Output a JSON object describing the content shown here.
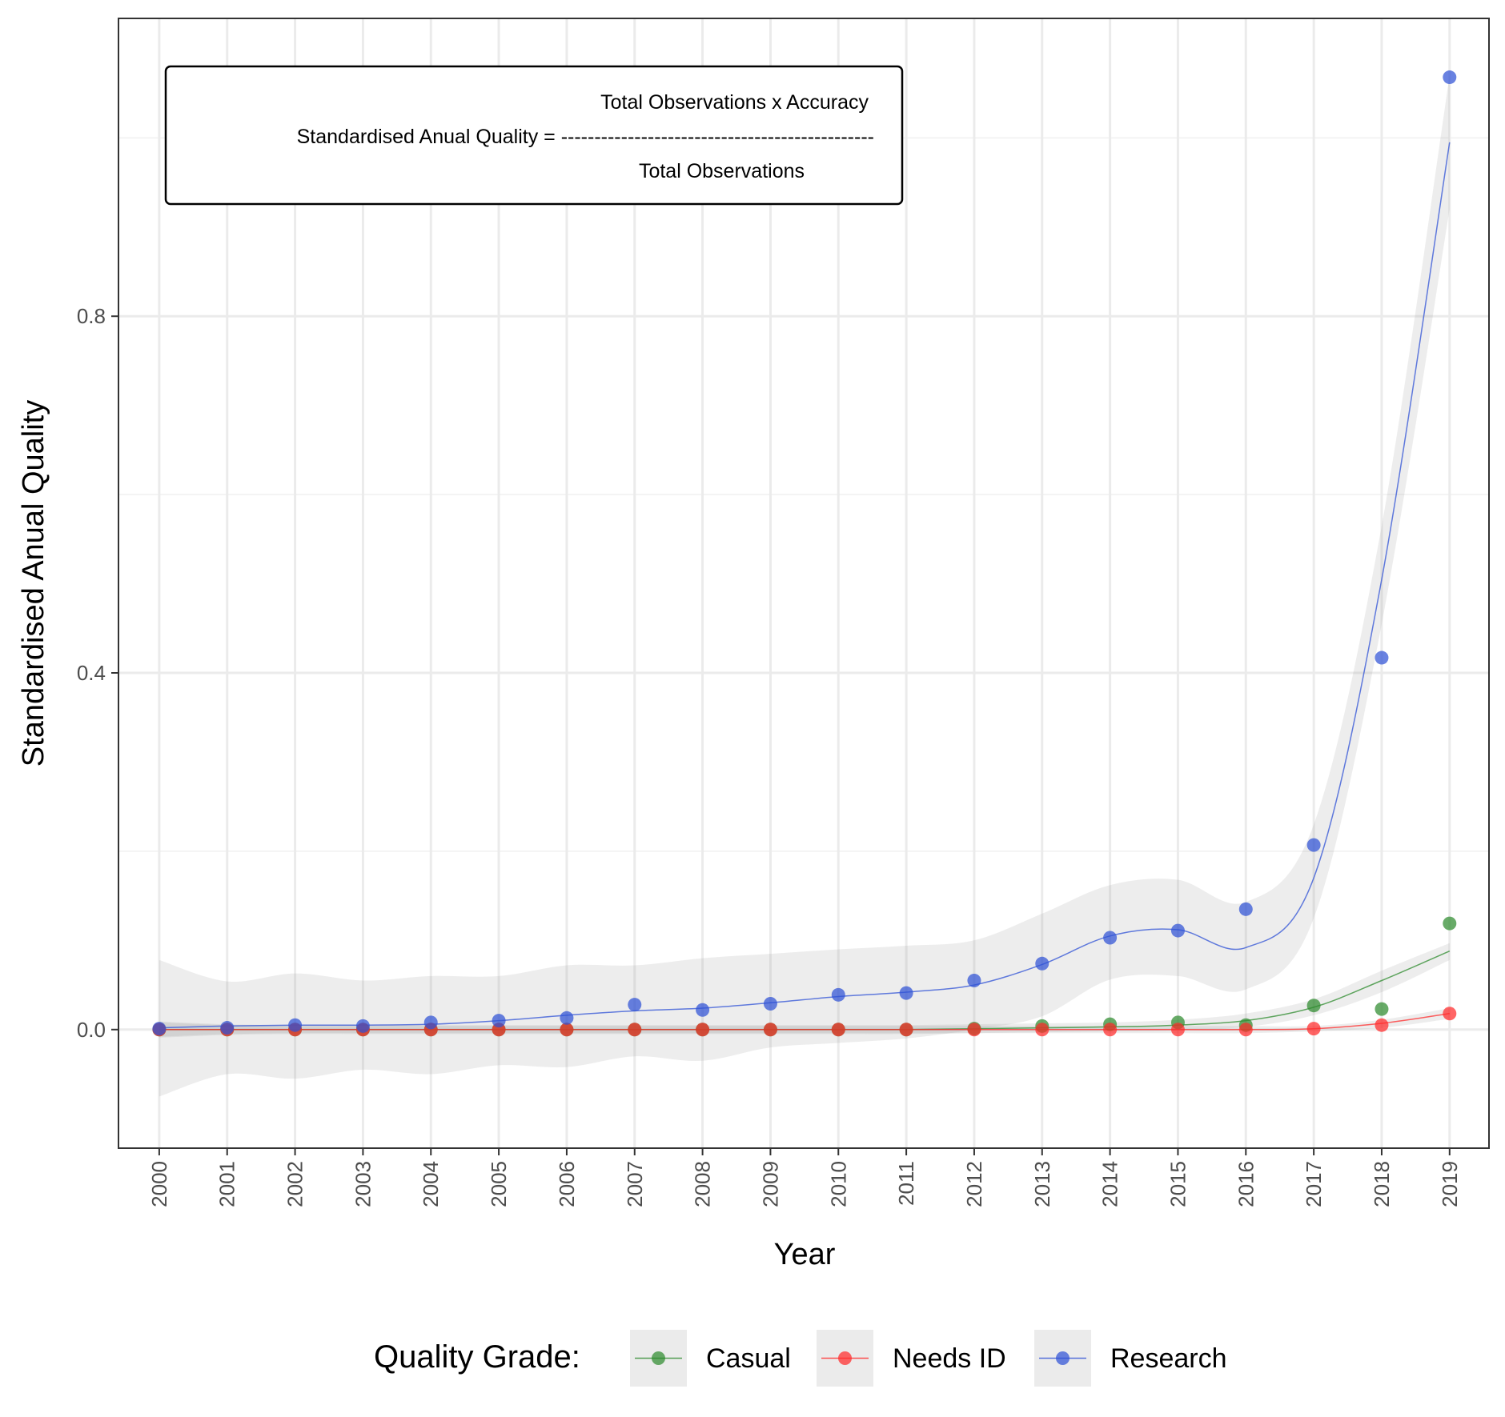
{
  "chart_data": {
    "type": "scatter",
    "title": "",
    "xlabel": "Year",
    "ylabel": "Standardised Anual Quality",
    "x": [
      2000,
      2001,
      2002,
      2003,
      2004,
      2005,
      2006,
      2007,
      2008,
      2009,
      2010,
      2011,
      2012,
      2013,
      2014,
      2015,
      2016,
      2017,
      2018,
      2019
    ],
    "x_tick_labels": [
      "2000",
      "2001",
      "2002",
      "2003",
      "2004",
      "2005",
      "2006",
      "2007",
      "2008",
      "2009",
      "2010",
      "2011",
      "2012",
      "2013",
      "2014",
      "2015",
      "2016",
      "2017",
      "2018",
      "2019"
    ],
    "y_ticks": [
      0.0,
      0.4,
      0.8
    ],
    "y_tick_labels": [
      "0.0",
      "0.4",
      "0.8"
    ],
    "xlim": [
      1999.4,
      2019.58
    ],
    "ylim": [
      -0.133,
      1.134
    ],
    "grid": true,
    "smoothing": "loess with grey confidence band",
    "legend": {
      "title": "Quality Grade:",
      "position": "bottom"
    },
    "series": [
      {
        "name": "Casual",
        "color": "#2e8b2e",
        "values": [
          0.0,
          0.0,
          0.0,
          0.0,
          0.0,
          0.0,
          0.0,
          0.0,
          0.0,
          0.0,
          0.0,
          0.0,
          0.001,
          0.004,
          0.006,
          0.008,
          0.005,
          0.027,
          0.023,
          0.119
        ],
        "smooth": [
          0.0,
          0.0,
          0.0,
          0.0,
          0.0,
          0.0,
          0.0,
          0.0,
          0.0,
          0.0,
          0.0,
          0.0,
          0.001,
          0.002,
          0.003,
          0.005,
          0.01,
          0.025,
          0.055,
          0.088
        ],
        "band_lower": [
          -0.009,
          -0.006,
          -0.005,
          -0.005,
          -0.005,
          -0.005,
          -0.005,
          -0.005,
          -0.005,
          -0.005,
          -0.005,
          -0.005,
          -0.004,
          -0.003,
          -0.002,
          -0.001,
          0.003,
          0.016,
          0.042,
          0.078
        ],
        "band_upper": [
          0.009,
          0.006,
          0.005,
          0.005,
          0.005,
          0.005,
          0.005,
          0.005,
          0.005,
          0.005,
          0.005,
          0.005,
          0.006,
          0.007,
          0.008,
          0.011,
          0.018,
          0.034,
          0.066,
          0.097
        ]
      },
      {
        "name": "Needs ID",
        "color": "#ff2a2a",
        "values": [
          0.0,
          0.0,
          0.0,
          0.0,
          0.0,
          0.0,
          0.0,
          0.0,
          0.0,
          0.0,
          0.0,
          0.0,
          0.0,
          0.0,
          0.0,
          0.0,
          0.0,
          0.001,
          0.005,
          0.018
        ],
        "smooth": [
          0.0,
          0.0,
          0.0,
          0.0,
          0.0,
          0.0,
          0.0,
          0.0,
          0.0,
          0.0,
          0.0,
          0.0,
          0.0,
          0.0,
          0.0,
          0.0,
          0.0,
          0.001,
          0.007,
          0.018
        ],
        "band_lower": [
          -0.008,
          -0.005,
          -0.004,
          -0.004,
          -0.004,
          -0.004,
          -0.004,
          -0.004,
          -0.004,
          -0.004,
          -0.004,
          -0.004,
          -0.004,
          -0.004,
          -0.004,
          -0.004,
          -0.004,
          -0.002,
          0.002,
          0.012
        ],
        "band_upper": [
          0.008,
          0.005,
          0.004,
          0.004,
          0.004,
          0.004,
          0.004,
          0.004,
          0.004,
          0.004,
          0.004,
          0.004,
          0.004,
          0.004,
          0.004,
          0.004,
          0.004,
          0.004,
          0.011,
          0.024
        ]
      },
      {
        "name": "Research",
        "color": "#2f52d6",
        "values": [
          0.001,
          0.002,
          0.005,
          0.004,
          0.008,
          0.01,
          0.013,
          0.028,
          0.022,
          0.029,
          0.039,
          0.041,
          0.055,
          0.074,
          0.103,
          0.111,
          0.135,
          0.207,
          0.417,
          1.068
        ],
        "smooth": [
          0.002,
          0.004,
          0.005,
          0.005,
          0.006,
          0.01,
          0.016,
          0.021,
          0.024,
          0.03,
          0.037,
          0.042,
          0.05,
          0.073,
          0.105,
          0.112,
          0.092,
          0.17,
          0.505,
          0.995
        ],
        "band_lower": [
          -0.075,
          -0.05,
          -0.055,
          -0.045,
          -0.05,
          -0.04,
          -0.042,
          -0.03,
          -0.035,
          -0.02,
          -0.015,
          -0.01,
          0.0,
          0.015,
          0.056,
          0.06,
          0.045,
          0.125,
          0.455,
          0.92
        ],
        "band_upper": [
          0.078,
          0.054,
          0.063,
          0.055,
          0.06,
          0.06,
          0.072,
          0.072,
          0.08,
          0.085,
          0.09,
          0.094,
          0.1,
          0.13,
          0.162,
          0.168,
          0.143,
          0.23,
          0.565,
          1.07
        ]
      }
    ],
    "annotation": {
      "line1": "Total Observations x Accuracy",
      "line2": "Standardised Anual Quality = -----------------------------------------------",
      "line3": "Total Observations"
    }
  }
}
